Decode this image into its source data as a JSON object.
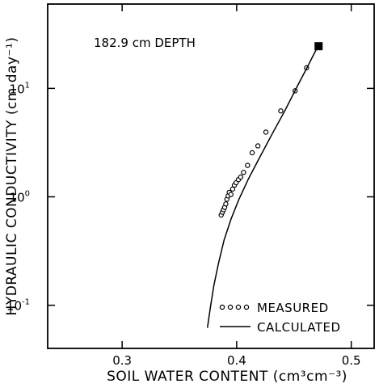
{
  "chart_data": {
    "type": "scatter",
    "title": "",
    "annotation": "182.9 cm DEPTH",
    "xlabel": "SOIL WATER  CONTENT (cm³cm⁻³)",
    "ylabel": "HYDRAULIC CONDUCTIVITY (cm day⁻¹)",
    "x_scale": "linear",
    "y_scale": "log",
    "xlim": [
      0.235,
      0.52
    ],
    "ylim": [
      0.04,
      60
    ],
    "x_ticks": [
      {
        "value": 0.3,
        "label": "0.3"
      },
      {
        "value": 0.4,
        "label": "0.4"
      },
      {
        "value": 0.5,
        "label": "0.5"
      }
    ],
    "y_ticks": [
      {
        "value": 0.1,
        "mantissa": "10",
        "exp": "-1"
      },
      {
        "value": 1,
        "mantissa": "10",
        "exp": "0"
      },
      {
        "value": 10,
        "mantissa": "10",
        "exp": "1"
      }
    ],
    "grid": false,
    "legend_position": "bottom-right",
    "series": [
      {
        "name": "MEASURED",
        "style": "open-circles",
        "points": [
          [
            0.3865,
            0.68
          ],
          [
            0.3875,
            0.72
          ],
          [
            0.3885,
            0.76
          ],
          [
            0.3895,
            0.8
          ],
          [
            0.3905,
            0.86
          ],
          [
            0.3915,
            0.95
          ],
          [
            0.3925,
            1.02
          ],
          [
            0.3935,
            1.1
          ],
          [
            0.395,
            1.05
          ],
          [
            0.3965,
            1.18
          ],
          [
            0.398,
            1.28
          ],
          [
            0.3995,
            1.35
          ],
          [
            0.4015,
            1.44
          ],
          [
            0.4035,
            1.52
          ],
          [
            0.406,
            1.68
          ],
          [
            0.4095,
            1.95
          ],
          [
            0.4135,
            2.55
          ],
          [
            0.4185,
            2.95
          ],
          [
            0.4255,
            3.95
          ],
          [
            0.4385,
            6.2
          ],
          [
            0.451,
            9.5
          ],
          [
            0.461,
            15.5
          ]
        ]
      },
      {
        "name": "CALCULATED",
        "style": "solid-line",
        "points": [
          [
            0.3745,
            0.062
          ],
          [
            0.377,
            0.095
          ],
          [
            0.38,
            0.15
          ],
          [
            0.384,
            0.24
          ],
          [
            0.389,
            0.4
          ],
          [
            0.395,
            0.62
          ],
          [
            0.402,
            0.95
          ],
          [
            0.41,
            1.45
          ],
          [
            0.42,
            2.3
          ],
          [
            0.431,
            3.8
          ],
          [
            0.442,
            6.2
          ],
          [
            0.453,
            10.5
          ],
          [
            0.462,
            16.0
          ],
          [
            0.4705,
            24.0
          ]
        ]
      },
      {
        "name": "",
        "style": "filled-square",
        "points": [
          [
            0.4715,
            24.5
          ]
        ]
      }
    ]
  }
}
